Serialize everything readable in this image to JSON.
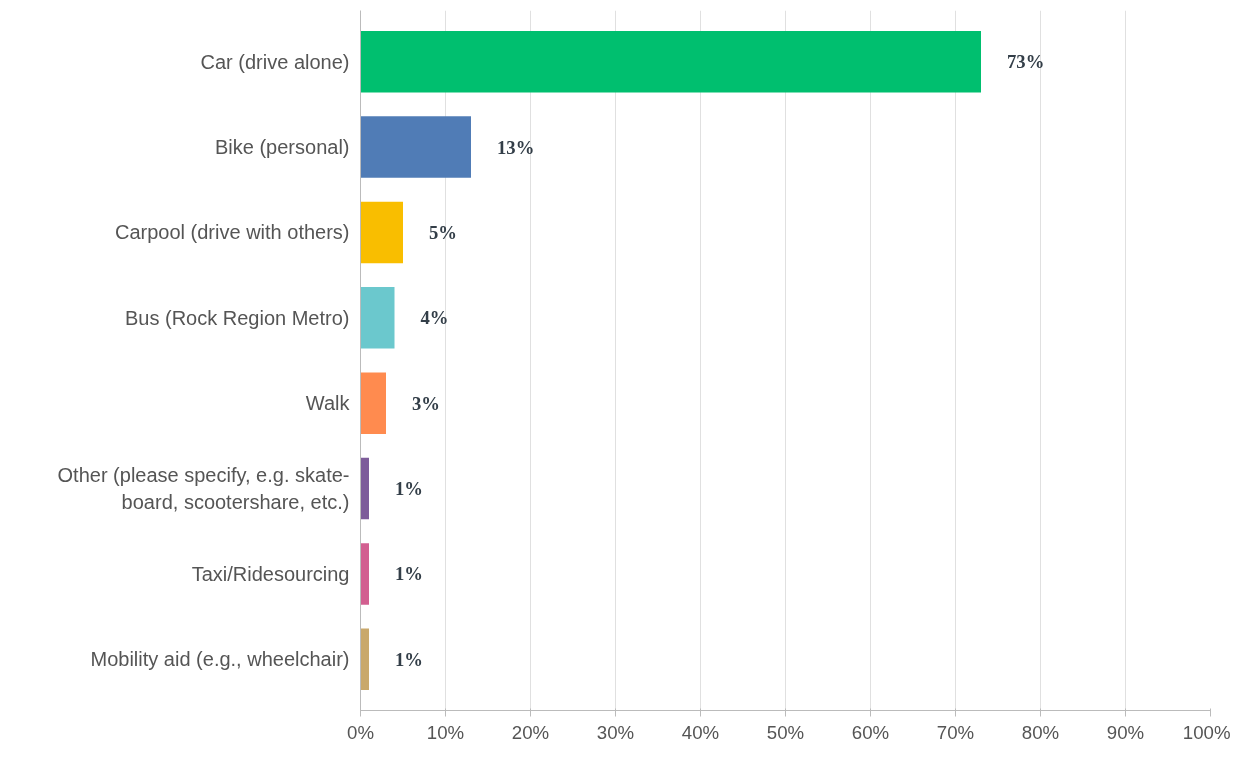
{
  "chart_data": {
    "type": "bar",
    "orientation": "horizontal",
    "categories": [
      "Car (drive alone)",
      "Bike (personal)",
      "Carpool (drive with others)",
      "Bus (Rock Region Metro)",
      "Walk",
      "Other (please specify, e.g. skate-board, scootershare, etc.)",
      "Taxi/Ridesourcing",
      "Mobility aid (e.g., wheelchair)"
    ],
    "values": [
      73,
      13,
      5,
      4,
      3,
      1,
      1,
      1
    ],
    "colors": [
      "#00bf6f",
      "#507cb6",
      "#f9be00",
      "#6bc8cd",
      "#ff8b4f",
      "#7d5c9a",
      "#d25f90",
      "#c9a86b"
    ],
    "value_labels": [
      "73%",
      "13%",
      "5%",
      "4%",
      "3%",
      "1%",
      "1%",
      "1%"
    ],
    "xlim": [
      0,
      100
    ],
    "xticks": [
      {
        "value": 0,
        "label": "0%"
      },
      {
        "value": 10,
        "label": "10%"
      },
      {
        "value": 20,
        "label": "20%"
      },
      {
        "value": 30,
        "label": "30%"
      },
      {
        "value": 40,
        "label": "40%"
      },
      {
        "value": 50,
        "label": "50%"
      },
      {
        "value": 60,
        "label": "60%"
      },
      {
        "value": 70,
        "label": "70%"
      },
      {
        "value": 80,
        "label": "80%"
      },
      {
        "value": 90,
        "label": "90%"
      },
      {
        "value": 100,
        "label": "100%"
      }
    ],
    "grid": "x"
  }
}
